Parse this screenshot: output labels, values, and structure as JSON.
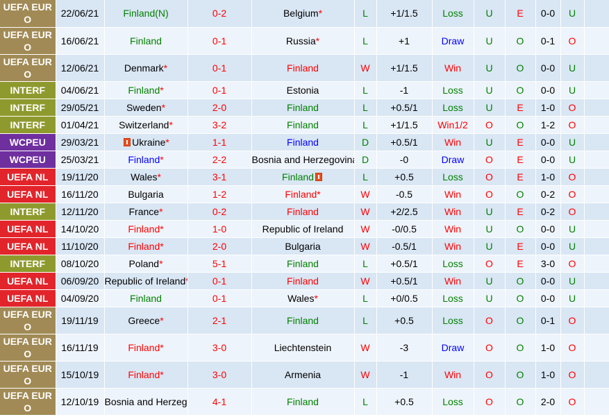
{
  "colors": {
    "UEFA EURO": "#a18a55",
    "INTERF": "#8f9a2e",
    "WCPEU": "#6f2f9f",
    "UEFA NL": "#e2252b"
  },
  "rows": [
    {
      "comp": "UEFA EURO",
      "date": "22/06/21",
      "home": "Finland",
      "home_suffix": "(N)",
      "home_color": "green",
      "home_star": false,
      "home_flag": false,
      "score": "0-2",
      "away": "Belgium",
      "away_color": "black",
      "away_star": true,
      "away_flag": false,
      "result": "L",
      "result_color": "green",
      "handicap": "+1/1.5",
      "hres": "Loss",
      "hres_color": "green",
      "ou1": "U",
      "ou1_color": "green",
      "ou2": "E",
      "ou2_color": "red",
      "ht": "0-0",
      "ou3": "U",
      "ou3_color": "green",
      "tall": true
    },
    {
      "comp": "UEFA EURO",
      "date": "16/06/21",
      "home": "Finland",
      "home_suffix": "",
      "home_color": "green",
      "home_star": false,
      "home_flag": false,
      "score": "0-1",
      "away": "Russia",
      "away_color": "black",
      "away_star": true,
      "away_flag": false,
      "result": "L",
      "result_color": "green",
      "handicap": "+1",
      "hres": "Draw",
      "hres_color": "blue",
      "ou1": "U",
      "ou1_color": "green",
      "ou2": "O",
      "ou2_color": "green",
      "ht": "0-1",
      "ou3": "O",
      "ou3_color": "red",
      "tall": true
    },
    {
      "comp": "UEFA EURO",
      "date": "12/06/21",
      "home": "Denmark",
      "home_suffix": "",
      "home_color": "black",
      "home_star": true,
      "home_flag": false,
      "score": "0-1",
      "away": "Finland",
      "away_color": "red",
      "away_star": false,
      "away_flag": false,
      "result": "W",
      "result_color": "red",
      "handicap": "+1/1.5",
      "hres": "Win",
      "hres_color": "red",
      "ou1": "U",
      "ou1_color": "green",
      "ou2": "O",
      "ou2_color": "green",
      "ht": "0-0",
      "ou3": "U",
      "ou3_color": "green",
      "tall": true
    },
    {
      "comp": "INTERF",
      "date": "04/06/21",
      "home": "Finland",
      "home_suffix": "",
      "home_color": "green",
      "home_star": true,
      "home_flag": false,
      "score": "0-1",
      "away": "Estonia",
      "away_color": "black",
      "away_star": false,
      "away_flag": false,
      "result": "L",
      "result_color": "green",
      "handicap": "-1",
      "hres": "Loss",
      "hres_color": "green",
      "ou1": "U",
      "ou1_color": "green",
      "ou2": "O",
      "ou2_color": "green",
      "ht": "0-0",
      "ou3": "U",
      "ou3_color": "green",
      "tall": false
    },
    {
      "comp": "INTERF",
      "date": "29/05/21",
      "home": "Sweden",
      "home_suffix": "",
      "home_color": "black",
      "home_star": true,
      "home_flag": false,
      "score": "2-0",
      "away": "Finland",
      "away_color": "green",
      "away_star": false,
      "away_flag": false,
      "result": "L",
      "result_color": "green",
      "handicap": "+0.5/1",
      "hres": "Loss",
      "hres_color": "green",
      "ou1": "U",
      "ou1_color": "green",
      "ou2": "E",
      "ou2_color": "red",
      "ht": "1-0",
      "ou3": "O",
      "ou3_color": "red",
      "tall": false
    },
    {
      "comp": "INTERF",
      "date": "01/04/21",
      "home": "Switzerland",
      "home_suffix": "",
      "home_color": "black",
      "home_star": true,
      "home_flag": false,
      "score": "3-2",
      "away": "Finland",
      "away_color": "green",
      "away_star": false,
      "away_flag": false,
      "result": "L",
      "result_color": "green",
      "handicap": "+1/1.5",
      "hres": "Win1/2",
      "hres_color": "red",
      "ou1": "O",
      "ou1_color": "red",
      "ou2": "O",
      "ou2_color": "green",
      "ht": "1-2",
      "ou3": "O",
      "ou3_color": "red",
      "tall": false
    },
    {
      "comp": "WCPEU",
      "date": "29/03/21",
      "home": "Ukraine",
      "home_suffix": "",
      "home_color": "black",
      "home_star": true,
      "home_flag": true,
      "score": "1-1",
      "away": "Finland",
      "away_color": "blue",
      "away_star": false,
      "away_flag": false,
      "result": "D",
      "result_color": "green",
      "handicap": "+0.5/1",
      "hres": "Win",
      "hres_color": "red",
      "ou1": "U",
      "ou1_color": "green",
      "ou2": "E",
      "ou2_color": "red",
      "ht": "0-0",
      "ou3": "U",
      "ou3_color": "green",
      "tall": false
    },
    {
      "comp": "WCPEU",
      "date": "25/03/21",
      "home": "Finland",
      "home_suffix": "",
      "home_color": "blue",
      "home_star": true,
      "home_flag": false,
      "score": "2-2",
      "away": "Bosnia and Herzegovina",
      "away_color": "black",
      "away_star": false,
      "away_flag": false,
      "result": "D",
      "result_color": "green",
      "handicap": "-0",
      "hres": "Draw",
      "hres_color": "blue",
      "ou1": "O",
      "ou1_color": "red",
      "ou2": "E",
      "ou2_color": "red",
      "ht": "0-0",
      "ou3": "U",
      "ou3_color": "green",
      "tall": false
    },
    {
      "comp": "UEFA NL",
      "date": "19/11/20",
      "home": "Wales",
      "home_suffix": "",
      "home_color": "black",
      "home_star": true,
      "home_flag": false,
      "score": "3-1",
      "away": "Finland",
      "away_color": "green",
      "away_star": false,
      "away_flag": true,
      "result": "L",
      "result_color": "green",
      "handicap": "+0.5",
      "hres": "Loss",
      "hres_color": "green",
      "ou1": "O",
      "ou1_color": "red",
      "ou2": "E",
      "ou2_color": "red",
      "ht": "1-0",
      "ou3": "O",
      "ou3_color": "red",
      "tall": false
    },
    {
      "comp": "UEFA NL",
      "date": "16/11/20",
      "home": "Bulgaria",
      "home_suffix": "",
      "home_color": "black",
      "home_star": false,
      "home_flag": false,
      "score": "1-2",
      "away": "Finland",
      "away_color": "red",
      "away_star": true,
      "away_flag": false,
      "result": "W",
      "result_color": "red",
      "handicap": "-0.5",
      "hres": "Win",
      "hres_color": "red",
      "ou1": "O",
      "ou1_color": "red",
      "ou2": "O",
      "ou2_color": "green",
      "ht": "0-2",
      "ou3": "O",
      "ou3_color": "red",
      "tall": false
    },
    {
      "comp": "INTERF",
      "date": "12/11/20",
      "home": "France",
      "home_suffix": "",
      "home_color": "black",
      "home_star": true,
      "home_flag": false,
      "score": "0-2",
      "away": "Finland",
      "away_color": "red",
      "away_star": false,
      "away_flag": false,
      "result": "W",
      "result_color": "red",
      "handicap": "+2/2.5",
      "hres": "Win",
      "hres_color": "red",
      "ou1": "U",
      "ou1_color": "green",
      "ou2": "E",
      "ou2_color": "red",
      "ht": "0-2",
      "ou3": "O",
      "ou3_color": "red",
      "tall": false
    },
    {
      "comp": "UEFA NL",
      "date": "14/10/20",
      "home": "Finland",
      "home_suffix": "",
      "home_color": "red",
      "home_star": true,
      "home_flag": false,
      "score": "1-0",
      "away": "Republic of Ireland",
      "away_color": "black",
      "away_star": false,
      "away_flag": false,
      "result": "W",
      "result_color": "red",
      "handicap": "-0/0.5",
      "hres": "Win",
      "hres_color": "red",
      "ou1": "U",
      "ou1_color": "green",
      "ou2": "O",
      "ou2_color": "green",
      "ht": "0-0",
      "ou3": "U",
      "ou3_color": "green",
      "tall": false
    },
    {
      "comp": "UEFA NL",
      "date": "11/10/20",
      "home": "Finland",
      "home_suffix": "",
      "home_color": "red",
      "home_star": true,
      "home_flag": false,
      "score": "2-0",
      "away": "Bulgaria",
      "away_color": "black",
      "away_star": false,
      "away_flag": false,
      "result": "W",
      "result_color": "red",
      "handicap": "-0.5/1",
      "hres": "Win",
      "hres_color": "red",
      "ou1": "U",
      "ou1_color": "green",
      "ou2": "E",
      "ou2_color": "red",
      "ht": "0-0",
      "ou3": "U",
      "ou3_color": "green",
      "tall": false
    },
    {
      "comp": "INTERF",
      "date": "08/10/20",
      "home": "Poland",
      "home_suffix": "",
      "home_color": "black",
      "home_star": true,
      "home_flag": false,
      "score": "5-1",
      "away": "Finland",
      "away_color": "green",
      "away_star": false,
      "away_flag": false,
      "result": "L",
      "result_color": "green",
      "handicap": "+0.5/1",
      "hres": "Loss",
      "hres_color": "green",
      "ou1": "O",
      "ou1_color": "red",
      "ou2": "E",
      "ou2_color": "red",
      "ht": "3-0",
      "ou3": "O",
      "ou3_color": "red",
      "tall": false
    },
    {
      "comp": "UEFA NL",
      "date": "06/09/20",
      "home": "Republic of Ireland",
      "home_suffix": "",
      "home_color": "black",
      "home_star": true,
      "home_flag": false,
      "score": "0-1",
      "away": "Finland",
      "away_color": "red",
      "away_star": false,
      "away_flag": false,
      "result": "W",
      "result_color": "red",
      "handicap": "+0.5/1",
      "hres": "Win",
      "hres_color": "red",
      "ou1": "U",
      "ou1_color": "green",
      "ou2": "O",
      "ou2_color": "green",
      "ht": "0-0",
      "ou3": "U",
      "ou3_color": "green",
      "tall": false
    },
    {
      "comp": "UEFA NL",
      "date": "04/09/20",
      "home": "Finland",
      "home_suffix": "",
      "home_color": "green",
      "home_star": false,
      "home_flag": false,
      "score": "0-1",
      "away": "Wales",
      "away_color": "black",
      "away_star": true,
      "away_flag": false,
      "result": "L",
      "result_color": "green",
      "handicap": "+0/0.5",
      "hres": "Loss",
      "hres_color": "green",
      "ou1": "U",
      "ou1_color": "green",
      "ou2": "O",
      "ou2_color": "green",
      "ht": "0-0",
      "ou3": "U",
      "ou3_color": "green",
      "tall": false
    },
    {
      "comp": "UEFA EURO",
      "date": "19/11/19",
      "home": "Greece",
      "home_suffix": "",
      "home_color": "black",
      "home_star": true,
      "home_flag": false,
      "score": "2-1",
      "away": "Finland",
      "away_color": "green",
      "away_star": false,
      "away_flag": false,
      "result": "L",
      "result_color": "green",
      "handicap": "+0.5",
      "hres": "Loss",
      "hres_color": "green",
      "ou1": "O",
      "ou1_color": "red",
      "ou2": "O",
      "ou2_color": "green",
      "ht": "0-1",
      "ou3": "O",
      "ou3_color": "red",
      "tall": true
    },
    {
      "comp": "UEFA EURO",
      "date": "16/11/19",
      "home": "Finland",
      "home_suffix": "",
      "home_color": "red",
      "home_star": true,
      "home_flag": false,
      "score": "3-0",
      "away": "Liechtenstein",
      "away_color": "black",
      "away_star": false,
      "away_flag": false,
      "result": "W",
      "result_color": "red",
      "handicap": "-3",
      "hres": "Draw",
      "hres_color": "blue",
      "ou1": "O",
      "ou1_color": "red",
      "ou2": "O",
      "ou2_color": "green",
      "ht": "1-0",
      "ou3": "O",
      "ou3_color": "red",
      "tall": true
    },
    {
      "comp": "UEFA EURO",
      "date": "15/10/19",
      "home": "Finland",
      "home_suffix": "",
      "home_color": "red",
      "home_star": true,
      "home_flag": false,
      "score": "3-0",
      "away": "Armenia",
      "away_color": "black",
      "away_star": false,
      "away_flag": false,
      "result": "W",
      "result_color": "red",
      "handicap": "-1",
      "hres": "Win",
      "hres_color": "red",
      "ou1": "O",
      "ou1_color": "red",
      "ou2": "O",
      "ou2_color": "green",
      "ht": "1-0",
      "ou3": "O",
      "ou3_color": "red",
      "tall": true
    },
    {
      "comp": "UEFA EURO",
      "date": "12/10/19",
      "home": "Bosnia and Herzegovina",
      "home_suffix": "",
      "home_color": "black",
      "home_star": true,
      "home_flag": false,
      "score": "4-1",
      "away": "Finland",
      "away_color": "green",
      "away_star": false,
      "away_flag": false,
      "result": "L",
      "result_color": "green",
      "handicap": "+0.5",
      "hres": "Loss",
      "hres_color": "green",
      "ou1": "O",
      "ou1_color": "red",
      "ou2": "O",
      "ou2_color": "green",
      "ht": "2-0",
      "ou3": "O",
      "ou3_color": "red",
      "tall": true
    }
  ]
}
